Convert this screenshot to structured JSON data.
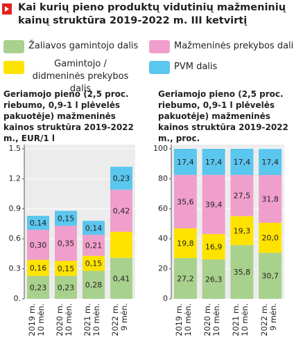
{
  "title": "Kai kurių pieno produktų vidutinių mažmeninių kainų struktūra 2019-2022 m. III ketvirtį",
  "chart_data": [
    {
      "type": "bar",
      "stacked": true,
      "title": "Geriamojo pieno (2,5 proc. riebumo, 0,9-1 l plėvelės pakuotėje) mažmeninės kainos struktūra 2019-2022 m., EUR/1 l",
      "categories": [
        "2019 m. 10 mėn.",
        "2020 m. 10 mėn.",
        "2021 m. 10 mėn.",
        "2022 m. 9 mėn."
      ],
      "series": [
        {
          "name": "Žaliavos gamintojo dalis",
          "color": "#a9d18e",
          "values": [
            0.23,
            0.23,
            0.28,
            0.41
          ],
          "value_labels": [
            "0,23",
            "0,23",
            "0,28",
            "0,41"
          ]
        },
        {
          "name": "Gamintojo / didmeninės prekybos dalis",
          "color": "#ffe300",
          "values": [
            0.16,
            0.15,
            0.15,
            0.26
          ],
          "value_labels": [
            "0,16",
            "0,15",
            "0,15",
            null
          ]
        },
        {
          "name": "Mažmeninės prekybos dalis",
          "color": "#f09fcc",
          "values": [
            0.3,
            0.35,
            0.21,
            0.42
          ],
          "value_labels": [
            "0,30",
            "0,35",
            "0,21",
            "0,42"
          ]
        },
        {
          "name": "PVM dalis",
          "color": "#5bc6ee",
          "values": [
            0.14,
            0.15,
            0.14,
            0.23
          ],
          "value_labels": [
            "0,14",
            "0,15",
            "0,14",
            "0,23"
          ]
        }
      ],
      "ylim": [
        0,
        1.5
      ],
      "yticks": [
        {
          "value": 0,
          "label": "0."
        },
        0.3,
        0.6,
        0.9,
        1.2,
        1.5
      ],
      "grid": true
    },
    {
      "type": "bar",
      "stacked": true,
      "title": "Geriamojo pieno (2,5 proc. riebumo, 0,9-1 l plėvelės pakuotėje) mažmeninės kainos struktūra 2019-2022 m., proc.",
      "categories": [
        "2019 m. 10 mėn.",
        "2020 m. 10 mėn.",
        "2021 m. 10 mėn.",
        "2022 m. 9 mėn."
      ],
      "series": [
        {
          "color": "#a9d18e",
          "values": [
            27.2,
            26.3,
            35.8,
            30.7
          ],
          "value_labels": [
            "27,2",
            "26,3",
            "35,8",
            "30,7"
          ]
        },
        {
          "color": "#ffe300",
          "values": [
            19.8,
            16.9,
            19.3,
            20.0
          ],
          "value_labels": [
            "19,8",
            "16,9",
            "19,3",
            "20,0"
          ]
        },
        {
          "color": "#f09fcc",
          "values": [
            35.6,
            39.4,
            27.5,
            31.8
          ],
          "value_labels": [
            "35,6",
            "39,4",
            "27,5",
            "31,8"
          ]
        },
        {
          "color": "#5bc6ee",
          "values": [
            17.4,
            17.4,
            17.4,
            17.4
          ],
          "value_labels": [
            "17,4",
            "17,4",
            "17,4",
            "17,4"
          ]
        }
      ],
      "ylim": [
        0,
        100
      ],
      "yticks": [
        0,
        20,
        40,
        60,
        80,
        100
      ],
      "grid": true
    }
  ]
}
